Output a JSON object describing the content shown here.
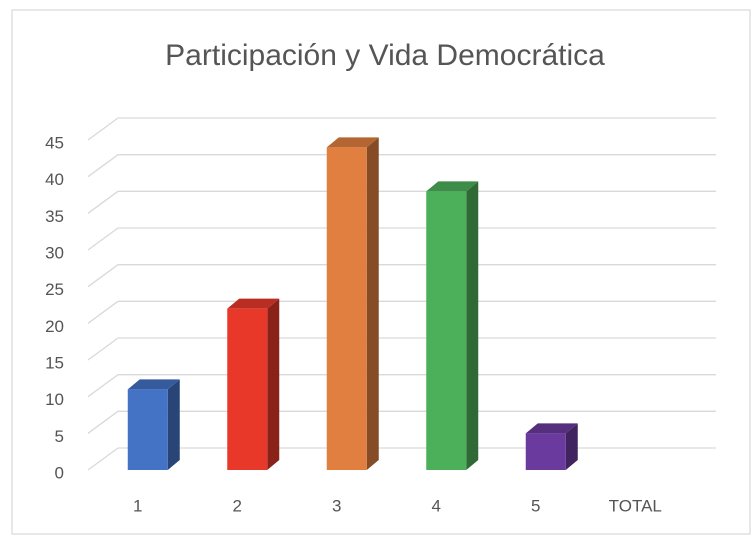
{
  "chart_data": {
    "type": "bar3d",
    "title": "Participación y Vida Democrática",
    "categories": [
      "1",
      "2",
      "3",
      "4",
      "5",
      "TOTAL"
    ],
    "values": [
      11,
      22,
      44,
      38,
      5,
      null
    ],
    "colors": [
      "#4472c4",
      "#e8382a",
      "#e07f3f",
      "#4caf5a",
      "#6a3a9e",
      null
    ],
    "ylim": [
      0,
      45
    ],
    "yticks": [
      0,
      5,
      10,
      15,
      20,
      25,
      30,
      35,
      40,
      45
    ],
    "grid": true
  }
}
